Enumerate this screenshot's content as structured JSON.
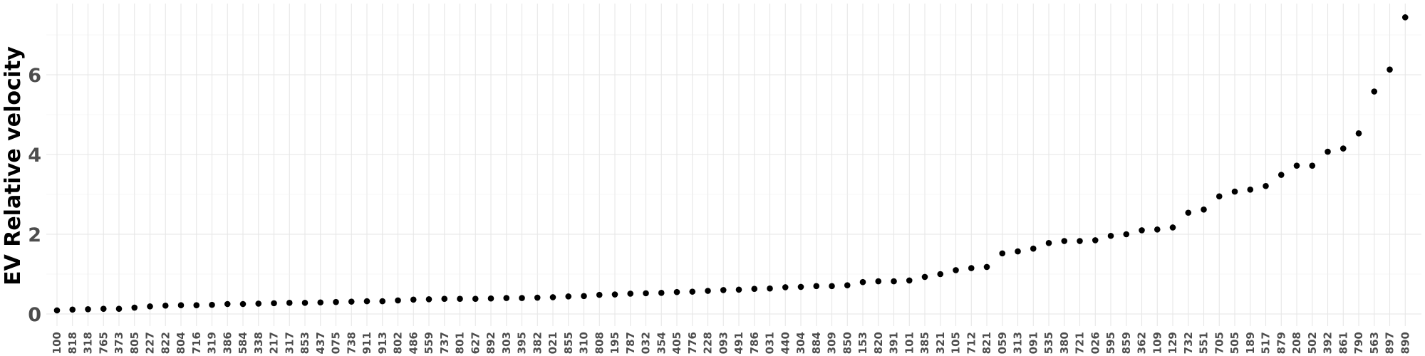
{
  "chart_data": {
    "type": "scatter",
    "xlabel": "",
    "ylabel": "EV Relative velocity",
    "ylim": [
      -0.1,
      7.7
    ],
    "yticks": [
      0,
      2,
      4,
      6
    ],
    "grid": true,
    "categories": [
      "100",
      "818",
      "318",
      "765",
      "373",
      "805",
      "227",
      "822",
      "804",
      "716",
      "319",
      "386",
      "584",
      "338",
      "217",
      "317",
      "853",
      "437",
      "075",
      "738",
      "911",
      "913",
      "802",
      "486",
      "559",
      "737",
      "801",
      "627",
      "892",
      "303",
      "395",
      "382",
      "021",
      "855",
      "310",
      "808",
      "195",
      "787",
      "032",
      "354",
      "405",
      "776",
      "228",
      "093",
      "491",
      "786",
      "031",
      "440",
      "304",
      "884",
      "309",
      "850",
      "153",
      "820",
      "391",
      "101",
      "385",
      "321",
      "105",
      "712",
      "821",
      "059",
      "313",
      "091",
      "535",
      "380",
      "721",
      "026",
      "595",
      "859",
      "362",
      "109",
      "129",
      "732",
      "551",
      "705",
      "505",
      "189",
      "517",
      "879",
      "208",
      "502",
      "392",
      "861",
      "790",
      "563",
      "897",
      "890"
    ],
    "values": [
      0.09,
      0.11,
      0.12,
      0.13,
      0.13,
      0.16,
      0.19,
      0.21,
      0.22,
      0.22,
      0.23,
      0.25,
      0.25,
      0.26,
      0.27,
      0.28,
      0.28,
      0.29,
      0.3,
      0.31,
      0.32,
      0.32,
      0.34,
      0.36,
      0.37,
      0.38,
      0.38,
      0.38,
      0.39,
      0.4,
      0.4,
      0.41,
      0.42,
      0.44,
      0.45,
      0.48,
      0.49,
      0.51,
      0.52,
      0.53,
      0.55,
      0.56,
      0.58,
      0.6,
      0.61,
      0.63,
      0.64,
      0.67,
      0.68,
      0.7,
      0.7,
      0.72,
      0.8,
      0.82,
      0.82,
      0.84,
      0.93,
      1.0,
      1.1,
      1.15,
      1.18,
      1.52,
      1.57,
      1.64,
      1.78,
      1.83,
      1.83,
      1.85,
      1.96,
      2.0,
      2.1,
      2.12,
      2.17,
      2.54,
      2.62,
      2.95,
      3.07,
      3.12,
      3.21,
      3.49,
      3.72,
      3.72,
      4.07,
      4.15,
      4.53,
      5.58,
      6.13,
      7.44
    ]
  }
}
